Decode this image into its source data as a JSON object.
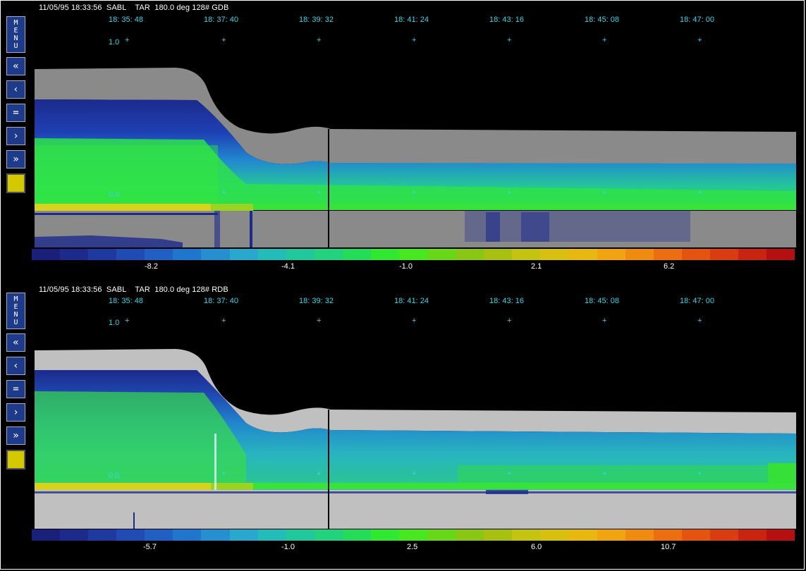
{
  "panels": [
    {
      "header": "11/05/95 18:33:56  SABL    TAR  180.0 deg 128# GDB",
      "time_ticks": [
        "18: 35: 48",
        "18: 37: 40",
        "18: 39: 32",
        "18: 41: 24",
        "18: 43: 16",
        "18: 45: 08",
        "18: 47: 00"
      ],
      "y_top": "1.0",
      "y_zero": "0.0",
      "colorbar_labels": [
        "-8.2",
        "-4.1",
        "-1.0",
        "2.1",
        "6.2"
      ]
    },
    {
      "header": "11/05/95 18:33:56  SABL    TAR  180.0 deg 128# RDB",
      "time_ticks": [
        "18: 35: 48",
        "18: 37: 40",
        "18: 39: 32",
        "18: 41: 24",
        "18: 43: 16",
        "18: 45: 08",
        "18: 47: 00"
      ],
      "y_top": "1.0",
      "y_zero": "0.0",
      "colorbar_labels": [
        "-5.7",
        "-1.0",
        "2.5",
        "6.0",
        "10.7"
      ]
    }
  ],
  "sidebar": {
    "menu_label": "MENU",
    "buttons": [
      {
        "icon": "double-left-chevron-icon",
        "glyph": "«"
      },
      {
        "icon": "left-chevron-icon",
        "glyph": "‹"
      },
      {
        "icon": "equals-icon",
        "glyph": "="
      },
      {
        "icon": "right-chevron-icon",
        "glyph": "›"
      },
      {
        "icon": "double-right-chevron-icon",
        "glyph": "»"
      }
    ],
    "color_swatch": "#d4c800"
  },
  "colors": {
    "background": "#000000",
    "tick_text": "#36d7e8",
    "sky_gray_top": "#8a8a8a",
    "sky_gray_bottom": "#c0c0c0",
    "button_blue": "#1e3a8a"
  },
  "colorbar_colors": [
    "#1a1f7a",
    "#1c2a8c",
    "#1e3aa0",
    "#1f4bb4",
    "#2060c4",
    "#2075cc",
    "#2490d0",
    "#28a8cc",
    "#24bcb8",
    "#20c89c",
    "#22d27c",
    "#24dc58",
    "#30e830",
    "#48e820",
    "#66d818",
    "#88c814",
    "#a8c010",
    "#c4c410",
    "#d8c010",
    "#e8b810",
    "#f0a410",
    "#f08a10",
    "#ec6e10",
    "#e45410",
    "#d83c10",
    "#c82410",
    "#b41010"
  ]
}
